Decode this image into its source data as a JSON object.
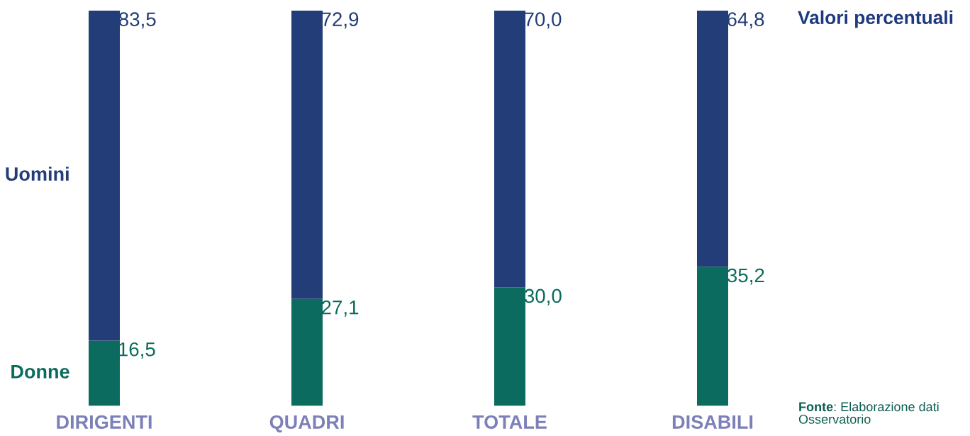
{
  "chart_data": {
    "type": "bar",
    "title": "Valori percentuali",
    "stacked": true,
    "categories": [
      "DIRIGENTI",
      "QUADRI",
      "TOTALE",
      "DISABILI"
    ],
    "series": [
      {
        "name": "Donne",
        "color": "#0b6b5e",
        "values": [
          16.5,
          27.1,
          30.0,
          35.2
        ],
        "value_labels": [
          "16,5",
          "27,1",
          "30,0",
          "35,2"
        ]
      },
      {
        "name": "Uomini",
        "color": "#223d78",
        "values": [
          83.5,
          72.9,
          70.0,
          64.8
        ],
        "value_labels": [
          "83,5",
          "72,9",
          "70,0",
          "64,8"
        ]
      }
    ],
    "annotations": [
      "Fonte: Elaborazione dati Osservatorio"
    ]
  }
}
